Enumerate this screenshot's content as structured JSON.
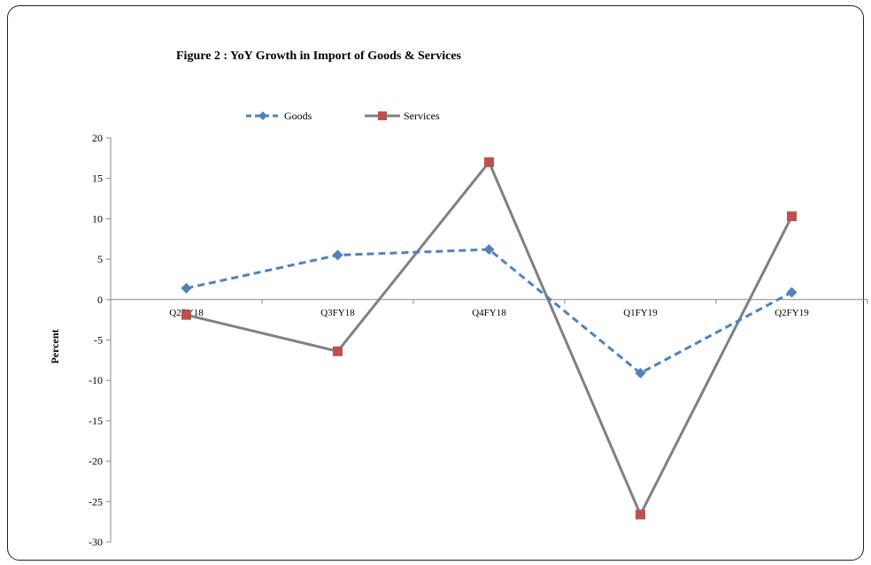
{
  "chart_data": {
    "type": "line",
    "title": "Figure 2 : YoY Growth in Import  of Goods & Services",
    "xlabel": "",
    "ylabel": "Percent",
    "categories": [
      "Q2FY18",
      "Q3FY18",
      "Q4FY18",
      "Q1FY19",
      "Q2FY19"
    ],
    "ylim": [
      -30,
      20
    ],
    "yticks": [
      20,
      15,
      10,
      5,
      0,
      -5,
      -10,
      -15,
      -20,
      -25,
      -30
    ],
    "legend_position": "top",
    "grid": false,
    "series": [
      {
        "name": "Goods",
        "values": [
          1.4,
          5.5,
          6.2,
          -9.1,
          0.9
        ],
        "color": "#4f81bd",
        "style": "dashed",
        "marker": "diamond"
      },
      {
        "name": "Services",
        "values": [
          -1.9,
          -6.4,
          17.0,
          -26.6,
          10.3
        ],
        "color": "#808080",
        "marker_color": "#c0504d",
        "style": "solid",
        "marker": "square"
      }
    ]
  }
}
